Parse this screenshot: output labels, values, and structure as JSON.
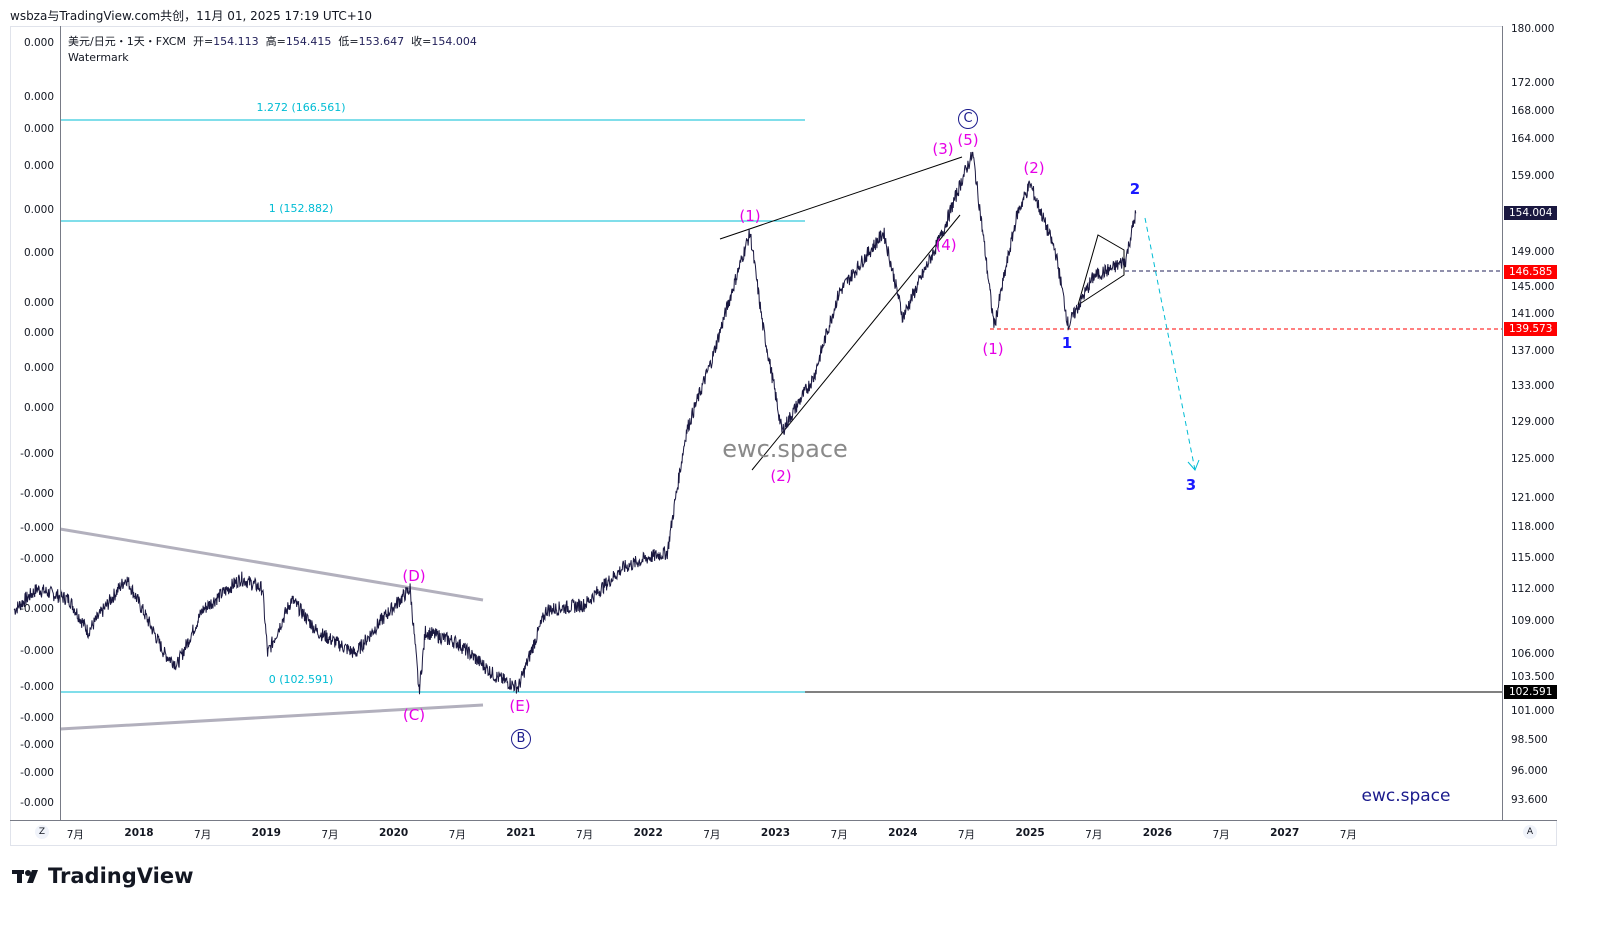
{
  "header": {
    "credit": "wsbza与TradingView.com共创，11月 01, 2025 17:19 UTC+10"
  },
  "legend": {
    "symbol": "美元/日元・1天・FXCM",
    "open_label": "开=",
    "open": "154.113",
    "high_label": "高=",
    "high": "154.415",
    "low_label": "低=",
    "low": "153.647",
    "close_label": "收=",
    "close": "154.004",
    "watermark": "Watermark"
  },
  "left_axis": [
    "0.000",
    "0.000",
    "0.000",
    "0.000",
    "0.000",
    "0.000",
    "0.000",
    "0.000",
    "0.000",
    "0.000",
    "-0.000",
    "-0.000",
    "-0.000",
    "-0.000",
    "-0.000",
    "-0.000",
    "-0.000",
    "-0.000",
    "-0.000",
    "-0.000",
    "-0.000"
  ],
  "right_axis": [
    "180.000",
    "172.000",
    "168.000",
    "164.000",
    "159.000",
    "149.000",
    "145.000",
    "141.000",
    "137.000",
    "133.000",
    "129.000",
    "125.000",
    "121.000",
    "118.000",
    "115.000",
    "112.000",
    "109.000",
    "106.000",
    "103.500",
    "101.000",
    "98.500",
    "96.000",
    "93.600"
  ],
  "price_badges": {
    "last": "154.004",
    "level1": "146.585",
    "level2": "139.573",
    "base": "102.591"
  },
  "time_axis": [
    "7月",
    "2018",
    "7月",
    "2019",
    "7月",
    "2020",
    "7月",
    "2021",
    "7月",
    "2022",
    "7月",
    "2023",
    "7月",
    "2024",
    "7月",
    "2025",
    "7月",
    "2026",
    "7月",
    "2027",
    "7月"
  ],
  "fib": {
    "f1272": "1.272 (166.561)",
    "f1": "1 (152.882)",
    "f0": "0 (102.591)"
  },
  "waves": {
    "D": "(D)",
    "C": "(C)",
    "E": "(E)",
    "B": "B",
    "CC": "C",
    "w1": "(1)",
    "w2": "(2)",
    "w3": "(3)",
    "w4": "(4)",
    "w5": "(5)",
    "n1": "(1)",
    "n2": "(2)",
    "m1": "1",
    "m2": "2",
    "m3": "3"
  },
  "watermark_center": "ewc.space",
  "watermark_corner": "ewc.space",
  "axis_buttons": {
    "left": "Z",
    "right": "A"
  },
  "brand": "TradingView",
  "colors": {
    "candle": "#1a1840",
    "fib": "#00bcd4",
    "wave": "#e600e6",
    "minor": "#1a1aff",
    "red": "#ff0000"
  },
  "chart_data": {
    "type": "line",
    "symbol": "USD/JPY",
    "x_unit": "year",
    "scale": "log",
    "waypoints": [
      [
        2017.02,
        110
      ],
      [
        2017.2,
        112
      ],
      [
        2017.45,
        111
      ],
      [
        2017.6,
        108
      ],
      [
        2017.9,
        113
      ],
      [
        2018.2,
        106
      ],
      [
        2018.3,
        105
      ],
      [
        2018.5,
        110
      ],
      [
        2018.8,
        113
      ],
      [
        2018.97,
        112
      ],
      [
        2019.01,
        106
      ],
      [
        2019.2,
        111
      ],
      [
        2019.4,
        108
      ],
      [
        2019.7,
        106
      ],
      [
        2019.9,
        109
      ],
      [
        2020.13,
        112
      ],
      [
        2020.2,
        102.6
      ],
      [
        2020.25,
        108
      ],
      [
        2020.5,
        107
      ],
      [
        2020.8,
        104
      ],
      [
        2020.98,
        103
      ],
      [
        2021.2,
        110
      ],
      [
        2021.5,
        110.5
      ],
      [
        2021.8,
        114
      ],
      [
        2022.0,
        115
      ],
      [
        2022.15,
        115.5
      ],
      [
        2022.3,
        128
      ],
      [
        2022.5,
        136
      ],
      [
        2022.8,
        151.5
      ],
      [
        2022.9,
        140
      ],
      [
        2023.05,
        128
      ],
      [
        2023.3,
        134
      ],
      [
        2023.5,
        144
      ],
      [
        2023.85,
        151.5
      ],
      [
        2024.0,
        141
      ],
      [
        2024.3,
        151
      ],
      [
        2024.5,
        160
      ],
      [
        2024.55,
        161.9
      ],
      [
        2024.7,
        142
      ],
      [
        2024.72,
        140
      ],
      [
        2024.9,
        154
      ],
      [
        2025.0,
        157.9
      ],
      [
        2025.2,
        149
      ],
      [
        2025.3,
        140
      ],
      [
        2025.5,
        146
      ],
      [
        2025.65,
        147
      ],
      [
        2025.75,
        148
      ],
      [
        2025.83,
        154
      ]
    ]
  }
}
